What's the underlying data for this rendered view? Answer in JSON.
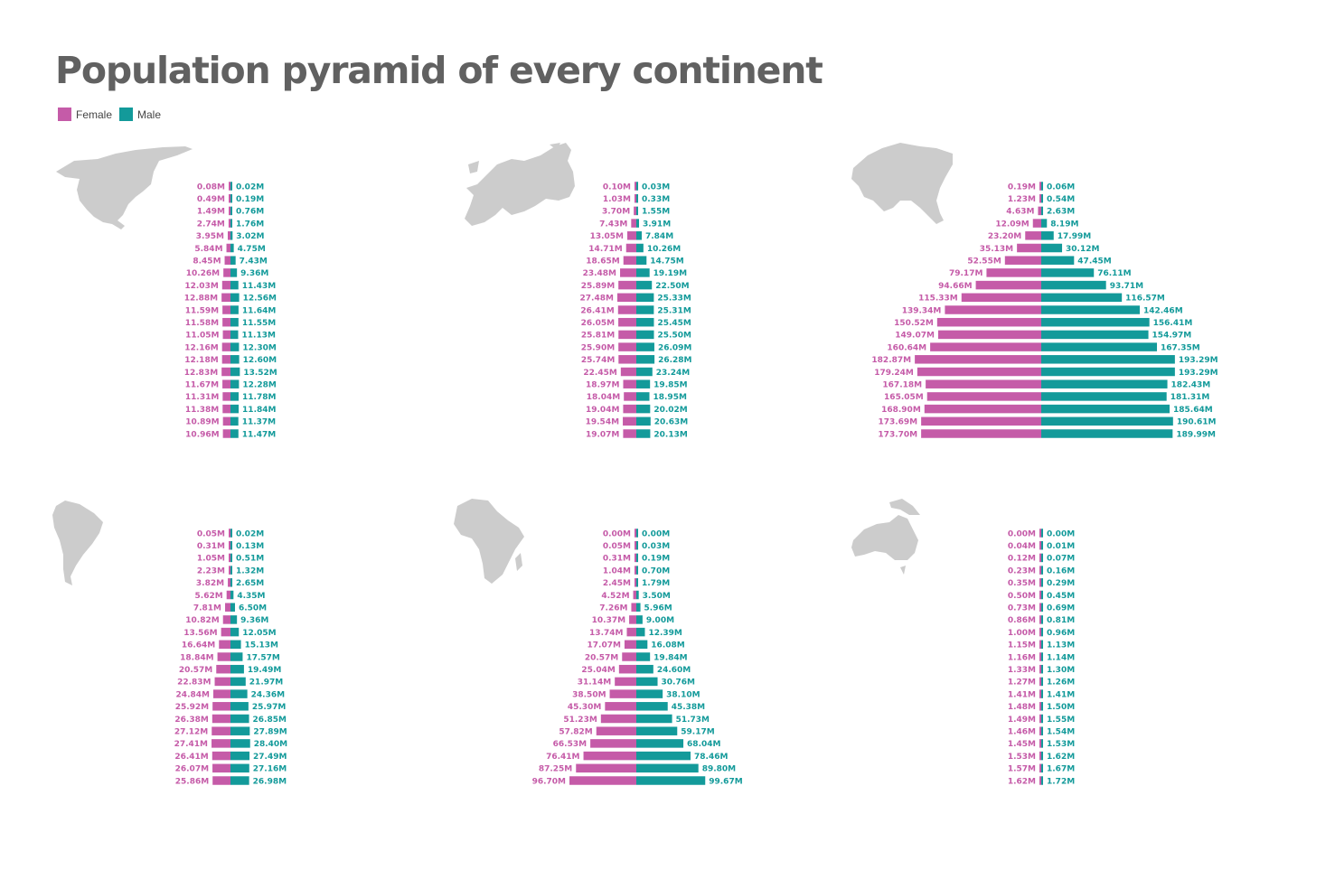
{
  "title": "Population pyramid of every continent",
  "legend": [
    {
      "label": "Female",
      "color": "#c55ba8"
    },
    {
      "label": "Male",
      "color": "#139a9a"
    }
  ],
  "colors": {
    "female": "#c55ba8",
    "male": "#139a9a",
    "map": "#cccccc"
  },
  "chart_data": [
    {
      "type": "bar",
      "orientation": "horizontal-pyramid",
      "map_icon": "north-america-map",
      "series": [
        {
          "name": "Female",
          "values": [
            0.08,
            0.49,
            1.49,
            2.74,
            3.95,
            5.84,
            8.45,
            10.26,
            12.03,
            12.88,
            11.59,
            11.58,
            11.05,
            12.16,
            12.18,
            12.83,
            11.67,
            11.31,
            11.38,
            10.89,
            10.96
          ]
        },
        {
          "name": "Male",
          "values": [
            0.02,
            0.19,
            0.76,
            1.76,
            3.02,
            4.75,
            7.43,
            9.36,
            11.43,
            12.56,
            11.64,
            11.55,
            11.13,
            12.3,
            12.6,
            13.52,
            12.28,
            11.78,
            11.84,
            11.37,
            11.47
          ]
        }
      ],
      "female_labels": [
        "0.08M",
        "0.49M",
        "1.49M",
        "2.74M",
        "3.95M",
        "5.84M",
        "8.45M",
        "10.26M",
        "12.03M",
        "12.88M",
        "11.59M",
        "11.58M",
        "11.05M",
        "12.16M",
        "12.18M",
        "12.83M",
        "11.67M",
        "11.31M",
        "11.38M",
        "10.89M",
        "10.96M"
      ],
      "male_labels": [
        "0.02M",
        "0.19M",
        "0.76M",
        "1.76M",
        "3.02M",
        "4.75M",
        "7.43M",
        "9.36M",
        "11.43M",
        "12.56M",
        "11.64M",
        "11.55M",
        "11.13M",
        "12.30M",
        "12.60M",
        "13.52M",
        "12.28M",
        "11.78M",
        "11.84M",
        "11.37M",
        "11.47M"
      ]
    },
    {
      "type": "bar",
      "orientation": "horizontal-pyramid",
      "map_icon": "europe-map",
      "series": [
        {
          "name": "Female",
          "values": [
            0.1,
            1.03,
            3.7,
            7.43,
            13.05,
            14.71,
            18.65,
            23.48,
            25.89,
            27.48,
            26.41,
            26.05,
            25.81,
            25.9,
            25.74,
            22.45,
            18.97,
            18.04,
            19.04,
            19.54,
            19.07
          ]
        },
        {
          "name": "Male",
          "values": [
            0.03,
            0.33,
            1.55,
            3.91,
            7.84,
            10.26,
            14.75,
            19.19,
            22.5,
            25.33,
            25.31,
            25.45,
            25.5,
            26.09,
            26.28,
            23.24,
            19.85,
            18.95,
            20.02,
            20.63,
            20.13
          ]
        }
      ],
      "female_labels": [
        "0.10M",
        "1.03M",
        "3.70M",
        "7.43M",
        "13.05M",
        "14.71M",
        "18.65M",
        "23.48M",
        "25.89M",
        "27.48M",
        "26.41M",
        "26.05M",
        "25.81M",
        "25.90M",
        "25.74M",
        "22.45M",
        "18.97M",
        "18.04M",
        "19.04M",
        "19.54M",
        "19.07M"
      ],
      "male_labels": [
        "0.03M",
        "0.33M",
        "1.55M",
        "3.91M",
        "7.84M",
        "10.26M",
        "14.75M",
        "19.19M",
        "22.50M",
        "25.33M",
        "25.31M",
        "25.45M",
        "25.50M",
        "26.09M",
        "26.28M",
        "23.24M",
        "19.85M",
        "18.95M",
        "20.02M",
        "20.63M",
        "20.13M"
      ]
    },
    {
      "type": "bar",
      "orientation": "horizontal-pyramid",
      "map_icon": "asia-map",
      "series": [
        {
          "name": "Female",
          "values": [
            0.19,
            1.23,
            4.63,
            12.09,
            23.2,
            35.13,
            52.55,
            79.17,
            94.66,
            115.33,
            139.34,
            150.52,
            149.07,
            160.64,
            182.87,
            179.24,
            167.18,
            165.05,
            168.9,
            173.69,
            173.7
          ]
        },
        {
          "name": "Male",
          "values": [
            0.06,
            0.54,
            2.63,
            8.19,
            17.99,
            30.12,
            47.45,
            76.11,
            93.71,
            116.57,
            142.46,
            156.41,
            154.97,
            167.35,
            193.29,
            193.29,
            182.43,
            181.31,
            185.64,
            190.61,
            189.99
          ]
        }
      ],
      "female_labels": [
        "0.19M",
        "1.23M",
        "4.63M",
        "12.09M",
        "23.20M",
        "35.13M",
        "52.55M",
        "79.17M",
        "94.66M",
        "115.33M",
        "139.34M",
        "150.52M",
        "149.07M",
        "160.64M",
        "182.87M",
        "179.24M",
        "167.18M",
        "165.05M",
        "168.90M",
        "173.69M",
        "173.70M"
      ],
      "male_labels": [
        "0.06M",
        "0.54M",
        "2.63M",
        "8.19M",
        "17.99M",
        "30.12M",
        "47.45M",
        "76.11M",
        "93.71M",
        "116.57M",
        "142.46M",
        "156.41M",
        "154.97M",
        "167.35M",
        "193.29M",
        "193.29M",
        "182.43M",
        "181.31M",
        "185.64M",
        "190.61M",
        "189.99M"
      ]
    },
    {
      "type": "bar",
      "orientation": "horizontal-pyramid",
      "map_icon": "south-america-map",
      "series": [
        {
          "name": "Female",
          "values": [
            0.05,
            0.31,
            1.05,
            2.23,
            3.82,
            5.62,
            7.81,
            10.82,
            13.56,
            16.64,
            18.84,
            20.57,
            22.83,
            24.84,
            25.92,
            26.38,
            27.12,
            27.41,
            26.41,
            26.07,
            25.86
          ]
        },
        {
          "name": "Male",
          "values": [
            0.02,
            0.13,
            0.51,
            1.32,
            2.65,
            4.35,
            6.5,
            9.36,
            12.05,
            15.13,
            17.57,
            19.49,
            21.97,
            24.36,
            25.97,
            26.85,
            27.89,
            28.4,
            27.49,
            27.16,
            26.98
          ]
        }
      ],
      "female_labels": [
        "0.05M",
        "0.31M",
        "1.05M",
        "2.23M",
        "3.82M",
        "5.62M",
        "7.81M",
        "10.82M",
        "13.56M",
        "16.64M",
        "18.84M",
        "20.57M",
        "22.83M",
        "24.84M",
        "25.92M",
        "26.38M",
        "27.12M",
        "27.41M",
        "26.41M",
        "26.07M",
        "25.86M"
      ],
      "male_labels": [
        "0.02M",
        "0.13M",
        "0.51M",
        "1.32M",
        "2.65M",
        "4.35M",
        "6.50M",
        "9.36M",
        "12.05M",
        "15.13M",
        "17.57M",
        "19.49M",
        "21.97M",
        "24.36M",
        "25.97M",
        "26.85M",
        "27.89M",
        "28.40M",
        "27.49M",
        "27.16M",
        "26.98M"
      ]
    },
    {
      "type": "bar",
      "orientation": "horizontal-pyramid",
      "map_icon": "africa-map",
      "series": [
        {
          "name": "Female",
          "values": [
            0.0,
            0.05,
            0.31,
            1.04,
            2.45,
            4.52,
            7.26,
            10.37,
            13.74,
            17.07,
            20.57,
            25.04,
            31.14,
            38.5,
            45.3,
            51.23,
            57.82,
            66.53,
            76.41,
            87.25,
            96.7
          ]
        },
        {
          "name": "Male",
          "values": [
            0.0,
            0.03,
            0.19,
            0.7,
            1.79,
            3.5,
            5.96,
            9.0,
            12.39,
            16.08,
            19.84,
            24.6,
            30.76,
            38.1,
            45.38,
            51.73,
            59.17,
            68.04,
            78.46,
            89.8,
            99.67
          ]
        }
      ],
      "female_labels": [
        "0.00M",
        "0.05M",
        "0.31M",
        "1.04M",
        "2.45M",
        "4.52M",
        "7.26M",
        "10.37M",
        "13.74M",
        "17.07M",
        "20.57M",
        "25.04M",
        "31.14M",
        "38.50M",
        "45.30M",
        "51.23M",
        "57.82M",
        "66.53M",
        "76.41M",
        "87.25M",
        "96.70M"
      ],
      "male_labels": [
        "0.00M",
        "0.03M",
        "0.19M",
        "0.70M",
        "1.79M",
        "3.50M",
        "5.96M",
        "9.00M",
        "12.39M",
        "16.08M",
        "19.84M",
        "24.60M",
        "30.76M",
        "38.10M",
        "45.38M",
        "51.73M",
        "59.17M",
        "68.04M",
        "78.46M",
        "89.80M",
        "99.67M"
      ]
    },
    {
      "type": "bar",
      "orientation": "horizontal-pyramid",
      "map_icon": "oceania-map",
      "series": [
        {
          "name": "Female",
          "values": [
            0.0,
            0.04,
            0.12,
            0.23,
            0.35,
            0.5,
            0.73,
            0.86,
            1.0,
            1.15,
            1.16,
            1.33,
            1.27,
            1.41,
            1.48,
            1.49,
            1.46,
            1.45,
            1.53,
            1.57,
            1.62
          ]
        },
        {
          "name": "Male",
          "values": [
            0.0,
            0.01,
            0.07,
            0.16,
            0.29,
            0.45,
            0.69,
            0.81,
            0.96,
            1.13,
            1.14,
            1.3,
            1.26,
            1.41,
            1.5,
            1.55,
            1.54,
            1.53,
            1.62,
            1.67,
            1.72
          ]
        }
      ],
      "female_labels": [
        "0.00M",
        "0.04M",
        "0.12M",
        "0.23M",
        "0.35M",
        "0.50M",
        "0.73M",
        "0.86M",
        "1.00M",
        "1.15M",
        "1.16M",
        "1.33M",
        "1.27M",
        "1.41M",
        "1.48M",
        "1.49M",
        "1.46M",
        "1.45M",
        "1.53M",
        "1.57M",
        "1.62M"
      ],
      "male_labels": [
        "0.00M",
        "0.01M",
        "0.07M",
        "0.16M",
        "0.29M",
        "0.45M",
        "0.69M",
        "0.81M",
        "0.96M",
        "1.13M",
        "1.14M",
        "1.30M",
        "1.26M",
        "1.41M",
        "1.50M",
        "1.55M",
        "1.54M",
        "1.53M",
        "1.62M",
        "1.67M",
        "1.72M"
      ]
    }
  ]
}
